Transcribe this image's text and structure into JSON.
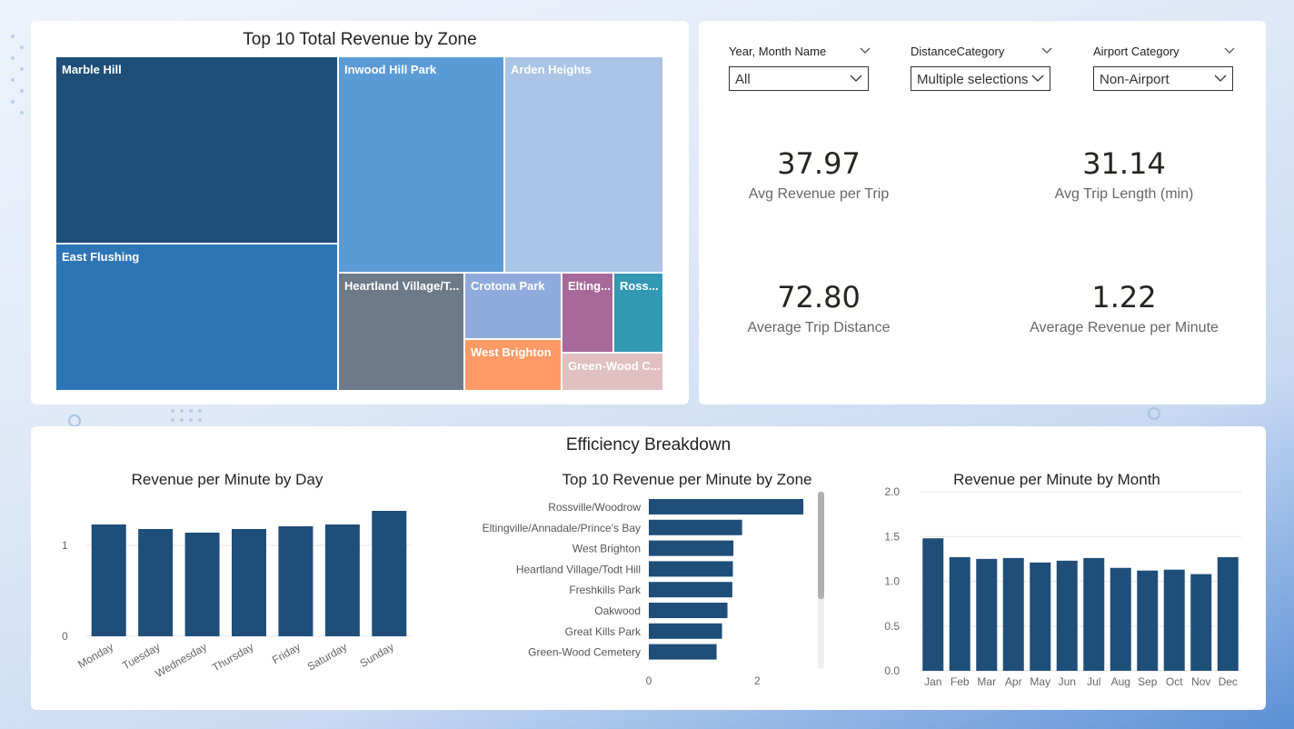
{
  "treemap": {
    "title": "Top 10 Total Revenue by Zone",
    "tiles": [
      {
        "label": "Marble Hill",
        "color": "#1f4e79"
      },
      {
        "label": "East Flushing",
        "color": "#2e75b6"
      },
      {
        "label": "Inwood Hill Park",
        "color": "#5b9bd5"
      },
      {
        "label": "Arden Heights",
        "color": "#a9c4e4"
      },
      {
        "label": "Heartland Village/T...",
        "color": "#6c7a89"
      },
      {
        "label": "Crotona Park",
        "color": "#8faadc"
      },
      {
        "label": "West Brighton",
        "color": "#ff9966"
      },
      {
        "label": "Elting...",
        "color": "#a66999"
      },
      {
        "label": "Ross...",
        "color": "#3399b3"
      },
      {
        "label": "Green-Wood C...",
        "color": "#e0c0c0"
      }
    ]
  },
  "slicers": [
    {
      "label": "Year, Month Name",
      "value": "All"
    },
    {
      "label": "DistanceCategory",
      "value": "Multiple selections"
    },
    {
      "label": "Airport Category",
      "value": "Non-Airport"
    }
  ],
  "kpis": [
    {
      "value": "37.97",
      "label": "Avg Revenue per Trip"
    },
    {
      "value": "31.14",
      "label": "Avg Trip Length (min)"
    },
    {
      "value": "72.80",
      "label": "Average Trip Distance"
    },
    {
      "value": "1.22",
      "label": "Average Revenue per Minute"
    }
  ],
  "efficiency": {
    "title": "Efficiency Breakdown"
  },
  "chart_data": [
    {
      "type": "bar",
      "title": "Revenue per Minute by Day",
      "categories": [
        "Monday",
        "Tuesday",
        "Wednesday",
        "Thursday",
        "Friday",
        "Saturday",
        "Sunday"
      ],
      "values": [
        1.23,
        1.18,
        1.14,
        1.18,
        1.21,
        1.23,
        1.38
      ],
      "yticks": [
        "0",
        "1"
      ],
      "ylim": [
        0,
        1.45
      ],
      "color": "#1f4e79"
    },
    {
      "type": "bar",
      "orientation": "horizontal",
      "title": "Top 10 Revenue per Minute by Zone",
      "categories": [
        "Rossville/Woodrow",
        "Eltingville/Annadale/Prince's Bay",
        "West Brighton",
        "Heartland Village/Todt Hill",
        "Freshkills Park",
        "Oakwood",
        "Great Kills Park",
        "Green-Wood Cemetery"
      ],
      "values": [
        2.85,
        1.72,
        1.56,
        1.55,
        1.54,
        1.45,
        1.35,
        1.25
      ],
      "xticks": [
        "0",
        "2"
      ],
      "xlim": [
        0,
        3.1
      ],
      "color": "#1f4e79"
    },
    {
      "type": "bar",
      "title": "Revenue per Minute by Month",
      "categories": [
        "Jan",
        "Feb",
        "Mar",
        "Apr",
        "May",
        "Jun",
        "Jul",
        "Aug",
        "Sep",
        "Oct",
        "Nov",
        "Dec"
      ],
      "values": [
        1.48,
        1.27,
        1.25,
        1.26,
        1.21,
        1.23,
        1.26,
        1.15,
        1.12,
        1.13,
        1.08,
        1.27
      ],
      "yticks": [
        "0.0",
        "0.5",
        "1.0",
        "1.5",
        "2.0"
      ],
      "ylim": [
        0,
        2.0
      ],
      "color": "#1f4e79"
    }
  ]
}
